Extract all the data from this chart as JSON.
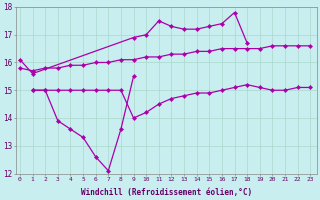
{
  "background_color": "#c8eef0",
  "grid_color": "#aad8cc",
  "line_color": "#aa00aa",
  "xlabel": "Windchill (Refroidissement éolien,°C)",
  "ylim": [
    12,
    18
  ],
  "xlim": [
    0,
    23
  ],
  "yticks": [
    12,
    13,
    14,
    15,
    16,
    17,
    18
  ],
  "xticks": [
    0,
    1,
    2,
    3,
    4,
    5,
    6,
    7,
    8,
    9,
    10,
    11,
    12,
    13,
    14,
    15,
    16,
    17,
    18,
    19,
    20,
    21,
    22,
    23
  ],
  "line_top_x": [
    0,
    1,
    9,
    10,
    11,
    12,
    13,
    14,
    15,
    16,
    17,
    18
  ],
  "line_top_y": [
    16.1,
    15.6,
    16.9,
    17.0,
    17.5,
    17.3,
    17.2,
    17.2,
    17.3,
    17.4,
    17.8,
    16.7
  ],
  "line_upmid_x": [
    0,
    1,
    2,
    3,
    4,
    5,
    6,
    7,
    8,
    9,
    10,
    11,
    12,
    13,
    14,
    15,
    16,
    17,
    18,
    19,
    20,
    21,
    22,
    23
  ],
  "line_upmid_y": [
    15.8,
    15.7,
    15.8,
    15.8,
    15.9,
    15.9,
    16.0,
    16.0,
    16.1,
    16.1,
    16.2,
    16.2,
    16.3,
    16.3,
    16.4,
    16.4,
    16.5,
    16.5,
    16.5,
    16.5,
    16.6,
    16.6,
    16.6,
    16.6
  ],
  "line_zig_x": [
    1,
    2,
    3,
    4,
    5,
    6,
    7,
    8,
    9
  ],
  "line_zig_y": [
    15.0,
    15.0,
    13.9,
    13.6,
    13.3,
    12.6,
    12.1,
    13.6,
    15.5
  ],
  "line_bot_x": [
    1,
    2,
    3,
    4,
    5,
    6,
    7,
    8,
    9,
    10,
    11,
    12,
    13,
    14,
    15,
    16,
    17,
    18,
    19,
    20,
    21,
    22,
    23
  ],
  "line_bot_y": [
    15.0,
    15.0,
    15.0,
    15.0,
    15.0,
    15.0,
    15.0,
    15.0,
    14.0,
    14.2,
    14.5,
    14.7,
    14.8,
    14.9,
    14.9,
    15.0,
    15.1,
    15.2,
    15.1,
    15.0,
    15.0,
    15.1,
    15.1
  ]
}
